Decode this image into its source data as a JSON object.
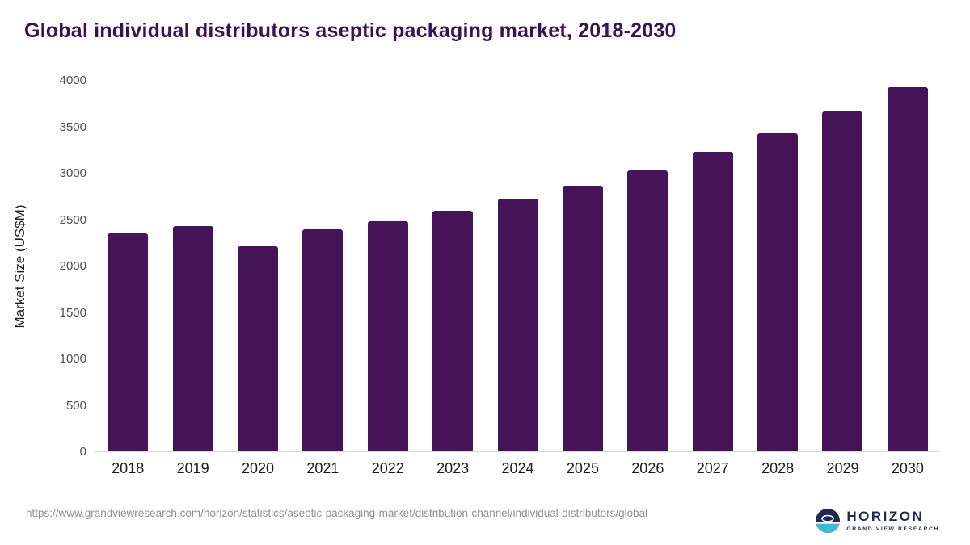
{
  "header": {
    "title": "Global individual distributors aseptic packaging market, 2018-2030"
  },
  "chart_data": {
    "type": "bar",
    "title": "Global individual distributors aseptic packaging market, 2018-2030",
    "xlabel": "",
    "ylabel": "Market Size (US$M)",
    "categories": [
      "2018",
      "2019",
      "2020",
      "2021",
      "2022",
      "2023",
      "2024",
      "2025",
      "2026",
      "2027",
      "2028",
      "2029",
      "2030"
    ],
    "values": [
      2340,
      2420,
      2200,
      2380,
      2470,
      2580,
      2710,
      2850,
      3020,
      3220,
      3420,
      3650,
      3910
    ],
    "ylim": [
      0,
      4000
    ],
    "yticks": [
      0,
      500,
      1000,
      1500,
      2000,
      2500,
      3000,
      3500,
      4000
    ],
    "grid": false,
    "legend": "none",
    "bar_color": "#461358"
  },
  "footer": {
    "source_url": "https://www.grandviewresearch.com/horizon/statistics/aseptic-packaging-market/distribution-channel/individual-distributors/global",
    "logo_title": "HORIZON",
    "logo_subtitle": "GRAND VIEW RESEARCH"
  },
  "colors": {
    "title": "#3a1254",
    "bar": "#461358",
    "axis_line": "#d9d9d9",
    "logo_navy": "#1f2950",
    "logo_teal": "#3bbcd6"
  },
  "icons": {
    "logo_globe": "globe-icon"
  }
}
